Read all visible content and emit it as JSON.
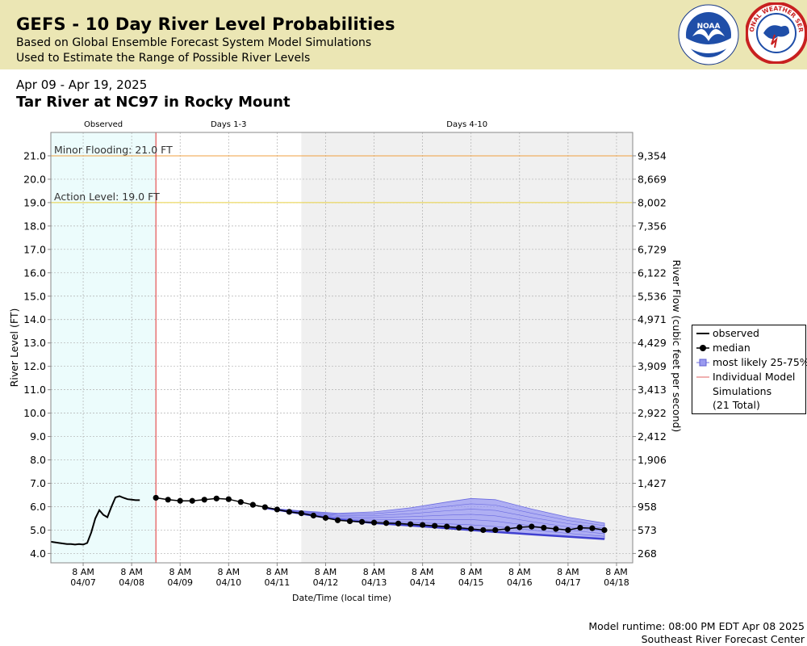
{
  "header": {
    "title": "GEFS - 10 Day River Level Probabilities",
    "subtitle1": "Based on Global Ensemble Forecast System Model Simulations",
    "subtitle2": "Used to Estimate the Range of Possible River Levels",
    "noaa_logo_text": "NOAA",
    "nws_logo_text": "NATIONAL WEATHER SERVICE"
  },
  "date_range": "Apr 09 - Apr 19, 2025",
  "location": "Tar River at NC97 in Rocky Mount",
  "footer": {
    "model_runtime": "Model runtime: 08:00 PM EDT Apr 08 2025",
    "source": "Southeast River Forecast Center"
  },
  "legend": {
    "observed": "observed",
    "median": "median",
    "most_likely": "most likely 25-75%",
    "individual_1": "Individual Model",
    "individual_2": "Simulations",
    "individual_3": "(21 Total)"
  },
  "chart_data": {
    "type": "line",
    "xlabel": "Date/Time (local time)",
    "ylabel": "River Level (FT)",
    "y2label": "River Flow (cubic feet per second)",
    "ylim": [
      3.6,
      22.0
    ],
    "xlim": [
      "2025-04-06 16:00",
      "2025-04-18 16:00"
    ],
    "grid": true,
    "legend_position": "right",
    "sections": [
      {
        "label": "Observed",
        "start": "2025-04-06 16:00",
        "end": "2025-04-08 20:00",
        "color": "#ecfcfc"
      },
      {
        "label": "Days 1-3",
        "start": "2025-04-08 20:00",
        "end": "2025-04-11 20:00",
        "color": "#ffffff"
      },
      {
        "label": "Days 4-10",
        "start": "2025-04-11 20:00",
        "end": "2025-04-18 16:00",
        "color": "#f0f0f0"
      }
    ],
    "y_ticks": [
      "4.0",
      "5.0",
      "6.0",
      "7.0",
      "8.0",
      "9.0",
      "10.0",
      "11.0",
      "12.0",
      "13.0",
      "14.0",
      "15.0",
      "16.0",
      "17.0",
      "18.0",
      "19.0",
      "20.0",
      "21.0"
    ],
    "y2_ticks": [
      {
        "stage": 4.0,
        "label": "268"
      },
      {
        "stage": 5.0,
        "label": "573"
      },
      {
        "stage": 6.0,
        "label": "958"
      },
      {
        "stage": 7.0,
        "label": "1,427"
      },
      {
        "stage": 8.0,
        "label": "1,906"
      },
      {
        "stage": 9.0,
        "label": "2,412"
      },
      {
        "stage": 10.0,
        "label": "2,922"
      },
      {
        "stage": 11.0,
        "label": "3,413"
      },
      {
        "stage": 12.0,
        "label": "3,909"
      },
      {
        "stage": 13.0,
        "label": "4,429"
      },
      {
        "stage": 14.0,
        "label": "4,971"
      },
      {
        "stage": 15.0,
        "label": "5,536"
      },
      {
        "stage": 16.0,
        "label": "6,122"
      },
      {
        "stage": 17.0,
        "label": "6,729"
      },
      {
        "stage": 18.0,
        "label": "7,356"
      },
      {
        "stage": 19.0,
        "label": "8,002"
      },
      {
        "stage": 20.0,
        "label": "8,669"
      },
      {
        "stage": 21.0,
        "label": "9,354"
      }
    ],
    "x_ticks": [
      {
        "day": "04/07",
        "time": "8 AM"
      },
      {
        "day": "04/08",
        "time": "8 AM"
      },
      {
        "day": "04/09",
        "time": "8 AM"
      },
      {
        "day": "04/10",
        "time": "8 AM"
      },
      {
        "day": "04/11",
        "time": "8 AM"
      },
      {
        "day": "04/12",
        "time": "8 AM"
      },
      {
        "day": "04/13",
        "time": "8 AM"
      },
      {
        "day": "04/14",
        "time": "8 AM"
      },
      {
        "day": "04/15",
        "time": "8 AM"
      },
      {
        "day": "04/16",
        "time": "8 AM"
      },
      {
        "day": "04/17",
        "time": "8 AM"
      },
      {
        "day": "04/18",
        "time": "8 AM"
      }
    ],
    "thresholds": [
      {
        "label": "Minor Flooding: 21.0 FT",
        "value": 21.0,
        "color": "#f0a040"
      },
      {
        "label": "Action Level: 19.0 FT",
        "value": 19.0,
        "color": "#e8d040"
      }
    ],
    "forecast_start": "2025-04-08 20:00",
    "observed": {
      "x": [
        "2025-04-06 16:00",
        "2025-04-06 20:00",
        "2025-04-07 00:00",
        "2025-04-07 02:00",
        "2025-04-07 04:00",
        "2025-04-07 06:00",
        "2025-04-07 08:00",
        "2025-04-07 10:00",
        "2025-04-07 12:00",
        "2025-04-07 14:00",
        "2025-04-07 16:00",
        "2025-04-07 18:00",
        "2025-04-07 20:00",
        "2025-04-07 22:00",
        "2025-04-08 00:00",
        "2025-04-08 02:00",
        "2025-04-08 04:00",
        "2025-04-08 06:00",
        "2025-04-08 08:00",
        "2025-04-08 10:00",
        "2025-04-08 12:00"
      ],
      "y": [
        4.5,
        4.45,
        4.4,
        4.4,
        4.38,
        4.4,
        4.38,
        4.45,
        4.9,
        5.5,
        5.85,
        5.65,
        5.55,
        6.0,
        6.4,
        6.45,
        6.38,
        6.32,
        6.3,
        6.28,
        6.28
      ]
    },
    "median": {
      "x": [
        "2025-04-08 20:00",
        "2025-04-09 02:00",
        "2025-04-09 08:00",
        "2025-04-09 14:00",
        "2025-04-09 20:00",
        "2025-04-10 02:00",
        "2025-04-10 08:00",
        "2025-04-10 14:00",
        "2025-04-10 20:00",
        "2025-04-11 02:00",
        "2025-04-11 08:00",
        "2025-04-11 14:00",
        "2025-04-11 20:00",
        "2025-04-12 02:00",
        "2025-04-12 08:00",
        "2025-04-12 14:00",
        "2025-04-12 20:00",
        "2025-04-13 02:00",
        "2025-04-13 08:00",
        "2025-04-13 14:00",
        "2025-04-13 20:00",
        "2025-04-14 02:00",
        "2025-04-14 08:00",
        "2025-04-14 14:00",
        "2025-04-14 20:00",
        "2025-04-15 02:00",
        "2025-04-15 08:00",
        "2025-04-15 14:00",
        "2025-04-15 20:00",
        "2025-04-16 02:00",
        "2025-04-16 08:00",
        "2025-04-16 14:00",
        "2025-04-16 20:00",
        "2025-04-17 02:00",
        "2025-04-17 08:00",
        "2025-04-17 14:00",
        "2025-04-17 20:00",
        "2025-04-18 02:00"
      ],
      "y": [
        6.38,
        6.3,
        6.25,
        6.25,
        6.3,
        6.35,
        6.32,
        6.2,
        6.08,
        5.98,
        5.88,
        5.78,
        5.72,
        5.62,
        5.52,
        5.42,
        5.38,
        5.35,
        5.32,
        5.3,
        5.28,
        5.25,
        5.22,
        5.18,
        5.15,
        5.1,
        5.05,
        5.0,
        5.0,
        5.05,
        5.12,
        5.15,
        5.1,
        5.05,
        5.0,
        5.1,
        5.08,
        5.0
      ]
    },
    "most_likely_band": {
      "x": [
        "2025-04-11 02:00",
        "2025-04-11 20:00",
        "2025-04-12 14:00",
        "2025-04-13 08:00",
        "2025-04-14 02:00",
        "2025-04-14 20:00",
        "2025-04-15 08:00",
        "2025-04-15 20:00",
        "2025-04-16 14:00",
        "2025-04-17 08:00",
        "2025-04-18 02:00"
      ],
      "upper": [
        5.95,
        5.82,
        5.72,
        5.78,
        5.95,
        6.2,
        6.35,
        6.3,
        5.9,
        5.55,
        5.3
      ],
      "lower": [
        5.95,
        5.7,
        5.45,
        5.3,
        5.2,
        5.08,
        5.0,
        4.92,
        4.82,
        4.72,
        4.62
      ]
    },
    "simulation_count": 21
  }
}
